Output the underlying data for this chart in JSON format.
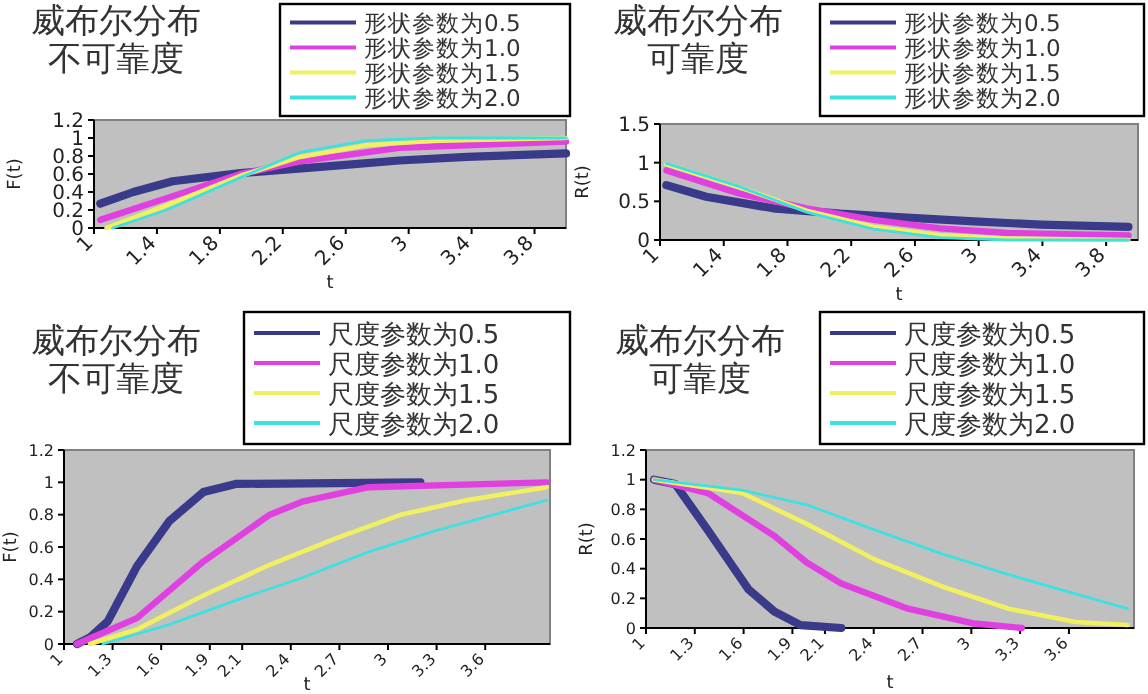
{
  "chart_data": [
    {
      "type": "line",
      "title": "威布尔分布不可靠度",
      "xlabel": "t",
      "ylabel": "F(t)",
      "xlim": [
        1,
        4
      ],
      "xticks": [
        1,
        1.4,
        1.8,
        2.2,
        2.6,
        3,
        3.4,
        3.8
      ],
      "ylim": [
        0,
        1.2
      ],
      "yticks": [
        0,
        0.2,
        0.4,
        0.6,
        0.8,
        1,
        1.2
      ],
      "legend": "top right",
      "series": [
        {
          "name": "形状参数为0.5",
          "color": "#3a3a8a",
          "x": [
            1.04,
            1.25,
            1.5,
            1.93,
            2.52,
            2.94,
            3.37,
            4.0
          ],
          "values": [
            0.27,
            0.4,
            0.52,
            0.61,
            0.69,
            0.75,
            0.79,
            0.83
          ]
        },
        {
          "name": "形状参数为1.0",
          "color": "#e040e0",
          "x": [
            1.04,
            1.46,
            1.93,
            2.31,
            2.94,
            3.37,
            4.0
          ],
          "values": [
            0.09,
            0.33,
            0.6,
            0.74,
            0.89,
            0.92,
            0.96
          ]
        },
        {
          "name": "形状参数为1.5",
          "color": "#f0f060",
          "x": [
            1.08,
            1.46,
            1.93,
            2.31,
            2.73,
            3.16,
            4.0
          ],
          "values": [
            0,
            0.25,
            0.58,
            0.79,
            0.92,
            0.97,
            1.0
          ]
        },
        {
          "name": "形状参数为2.0",
          "color": "#40e0e0",
          "x": [
            1.12,
            1.46,
            1.93,
            2.31,
            2.73,
            3.16,
            4.0
          ],
          "values": [
            0,
            0.2,
            0.56,
            0.84,
            0.97,
            1.0,
            1.0
          ]
        }
      ]
    },
    {
      "type": "line",
      "title": "威布尔分布可靠度",
      "xlabel": "t",
      "ylabel": "R(t)",
      "xlim": [
        1,
        4
      ],
      "xticks": [
        1,
        1.4,
        1.8,
        2.2,
        2.6,
        3,
        3.4,
        3.8
      ],
      "ylim": [
        0,
        1.5
      ],
      "yticks": [
        0,
        0.5,
        1,
        1.5
      ],
      "legend": "top right",
      "series": [
        {
          "name": "形状参数为0.5",
          "color": "#3a3a8a",
          "x": [
            1.04,
            1.29,
            1.71,
            2.13,
            2.55,
            2.97,
            3.39,
            3.94
          ],
          "values": [
            0.71,
            0.56,
            0.41,
            0.34,
            0.29,
            0.24,
            0.2,
            0.17
          ]
        },
        {
          "name": "形状参数为1.0",
          "color": "#e040e0",
          "x": [
            1.04,
            1.5,
            1.92,
            2.34,
            2.76,
            3.18,
            3.94
          ],
          "values": [
            0.9,
            0.6,
            0.41,
            0.26,
            0.15,
            0.09,
            0.06
          ]
        },
        {
          "name": "形状参数为1.5",
          "color": "#f0f060",
          "x": [
            1.04,
            1.5,
            1.92,
            2.34,
            2.76,
            3.18,
            3.94
          ],
          "values": [
            0.98,
            0.68,
            0.38,
            0.17,
            0.06,
            0.02,
            0
          ]
        },
        {
          "name": "形状参数为2.0",
          "color": "#40e0e0",
          "x": [
            1.04,
            1.5,
            1.92,
            2.34,
            2.76,
            3.18,
            3.94
          ],
          "values": [
            0.99,
            0.69,
            0.36,
            0.14,
            0.03,
            0,
            0
          ]
        }
      ]
    },
    {
      "type": "line",
      "title": "威布尔分布不可靠度",
      "xlabel": "t",
      "ylabel": "F(t)",
      "xlim": [
        1,
        4
      ],
      "xticks": [
        1,
        1.3,
        1.6,
        1.9,
        2.1,
        2.4,
        2.7,
        3,
        3.3,
        3.6
      ],
      "ylim": [
        0,
        1.2
      ],
      "yticks": [
        0,
        0.2,
        0.4,
        0.6,
        0.8,
        1,
        1.2
      ],
      "legend": "top right",
      "series": [
        {
          "name": "尺度参数为0.5",
          "color": "#3a3a8a",
          "x": [
            1.08,
            1.16,
            1.27,
            1.45,
            1.65,
            1.86,
            2.06,
            3.2
          ],
          "values": [
            0,
            0.04,
            0.14,
            0.48,
            0.76,
            0.94,
            0.99,
            1.0
          ]
        },
        {
          "name": "尺度参数为1.0",
          "color": "#e040e0",
          "x": [
            1.08,
            1.45,
            1.86,
            2.27,
            2.47,
            2.88,
            3.98
          ],
          "values": [
            0,
            0.16,
            0.51,
            0.8,
            0.88,
            0.97,
            1.0
          ]
        },
        {
          "name": "尺度参数为1.5",
          "color": "#f0f060",
          "x": [
            1.16,
            1.45,
            1.86,
            2.27,
            2.67,
            3.08,
            3.49,
            3.98
          ],
          "values": [
            0,
            0.09,
            0.3,
            0.49,
            0.65,
            0.8,
            0.89,
            0.97
          ]
        },
        {
          "name": "尺度参数为2.0",
          "color": "#40e0e0",
          "x": [
            1.24,
            1.65,
            2.06,
            2.47,
            2.88,
            3.29,
            3.69,
            3.98
          ],
          "values": [
            0,
            0.12,
            0.27,
            0.41,
            0.57,
            0.7,
            0.81,
            0.89
          ]
        }
      ]
    },
    {
      "type": "line",
      "title": "威布尔分布可靠度",
      "xlabel": "t",
      "ylabel": "R(t)",
      "xlim": [
        1,
        4
      ],
      "xticks": [
        1,
        1.3,
        1.6,
        1.9,
        2.1,
        2.4,
        2.7,
        3,
        3.3,
        3.6
      ],
      "ylim": [
        0,
        1.2
      ],
      "yticks": [
        0,
        0.2,
        0.4,
        0.6,
        0.8,
        1,
        1.2
      ],
      "legend": "top right",
      "series": [
        {
          "name": "尺度参数为0.5",
          "color": "#3a3a8a",
          "x": [
            1.05,
            1.18,
            1.38,
            1.63,
            1.79,
            1.95,
            2.2
          ],
          "values": [
            1.0,
            0.97,
            0.66,
            0.26,
            0.11,
            0.02,
            0
          ]
        },
        {
          "name": "尺度参数为1.0",
          "color": "#e040e0",
          "x": [
            1.05,
            1.38,
            1.79,
            1.99,
            2.2,
            2.61,
            3.02,
            3.31
          ],
          "values": [
            1,
            0.91,
            0.62,
            0.44,
            0.3,
            0.13,
            0.03,
            0
          ]
        },
        {
          "name": "尺度参数为1.5",
          "color": "#f0f060",
          "x": [
            1.05,
            1.59,
            1.99,
            2.41,
            2.82,
            3.23,
            3.64,
            3.96
          ],
          "values": [
            1,
            0.91,
            0.7,
            0.46,
            0.28,
            0.13,
            0.04,
            0.02
          ]
        },
        {
          "name": "尺度参数为2.0",
          "color": "#40e0e0",
          "x": [
            1.05,
            1.59,
            1.99,
            2.41,
            2.82,
            3.23,
            3.64,
            3.96
          ],
          "values": [
            1,
            0.93,
            0.83,
            0.66,
            0.5,
            0.36,
            0.23,
            0.13
          ]
        }
      ]
    }
  ]
}
